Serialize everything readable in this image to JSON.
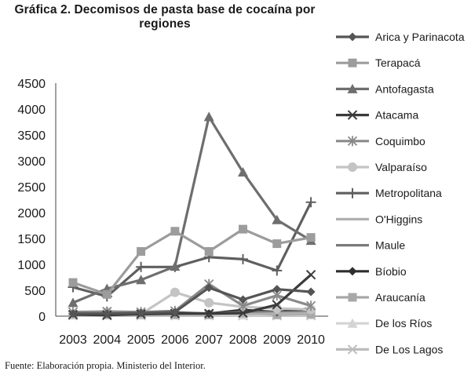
{
  "chart_data": {
    "type": "line",
    "title": "Gráfica 2. Decomisos de pasta base de cocaína por regiones",
    "x": [
      "2003",
      "2004",
      "2005",
      "2006",
      "2007",
      "2008",
      "2009",
      "2010"
    ],
    "ylim": [
      0,
      4500
    ],
    "yticks": [
      "0",
      "500",
      "1000",
      "1500",
      "2000",
      "2500",
      "3000",
      "3500",
      "4000",
      "4500"
    ],
    "grid": false,
    "legend_position": "right",
    "series": [
      {
        "name": "Arica y Parinacota",
        "color": "#555555",
        "marker": "diamond",
        "values": [
          50,
          50,
          60,
          80,
          550,
          320,
          520,
          470
        ]
      },
      {
        "name": "Terapacá",
        "color": "#9c9c9c",
        "marker": "square",
        "values": [
          650,
          420,
          1250,
          1640,
          1250,
          1680,
          1400,
          1520
        ]
      },
      {
        "name": "Antofagasta",
        "color": "#6e6e6e",
        "marker": "triangle",
        "values": [
          260,
          530,
          700,
          960,
          3850,
          2780,
          1860,
          1460
        ]
      },
      {
        "name": "Atacama",
        "color": "#3a3a3a",
        "marker": "x",
        "values": [
          30,
          20,
          40,
          50,
          50,
          60,
          220,
          800
        ]
      },
      {
        "name": "Coquimbo",
        "color": "#8a8a8a",
        "marker": "star",
        "values": [
          80,
          90,
          80,
          100,
          620,
          200,
          400,
          200
        ]
      },
      {
        "name": "Valparaíso",
        "color": "#c4c4c4",
        "marker": "circle",
        "values": [
          30,
          80,
          40,
          460,
          260,
          180,
          150,
          130
        ]
      },
      {
        "name": "Metropolitana",
        "color": "#5f5f5f",
        "marker": "plus",
        "values": [
          560,
          380,
          950,
          950,
          1140,
          1100,
          880,
          2200
        ]
      },
      {
        "name": "O'Higgins",
        "color": "#b0b0b0",
        "marker": "none",
        "values": [
          40,
          50,
          40,
          40,
          40,
          40,
          50,
          60
        ]
      },
      {
        "name": "Maule",
        "color": "#7a7a7a",
        "marker": "none",
        "values": [
          60,
          90,
          60,
          60,
          50,
          80,
          80,
          80
        ]
      },
      {
        "name": "Bíobio",
        "color": "#2e2e2e",
        "marker": "diamond",
        "values": [
          40,
          60,
          70,
          70,
          50,
          120,
          80,
          150
        ]
      },
      {
        "name": "Araucanía",
        "color": "#a8a8a8",
        "marker": "square",
        "values": [
          30,
          30,
          30,
          30,
          30,
          60,
          30,
          40
        ]
      },
      {
        "name": "De los Ríos",
        "color": "#d4d4d4",
        "marker": "triangle",
        "values": [
          20,
          20,
          20,
          20,
          20,
          20,
          20,
          20
        ]
      },
      {
        "name": "De Los Lagos",
        "color": "#bdbdbd",
        "marker": "x",
        "values": [
          10,
          10,
          10,
          10,
          10,
          10,
          10,
          10
        ]
      }
    ]
  },
  "source_note": "Fuente: Elaboración propia. Ministerio del Interior."
}
